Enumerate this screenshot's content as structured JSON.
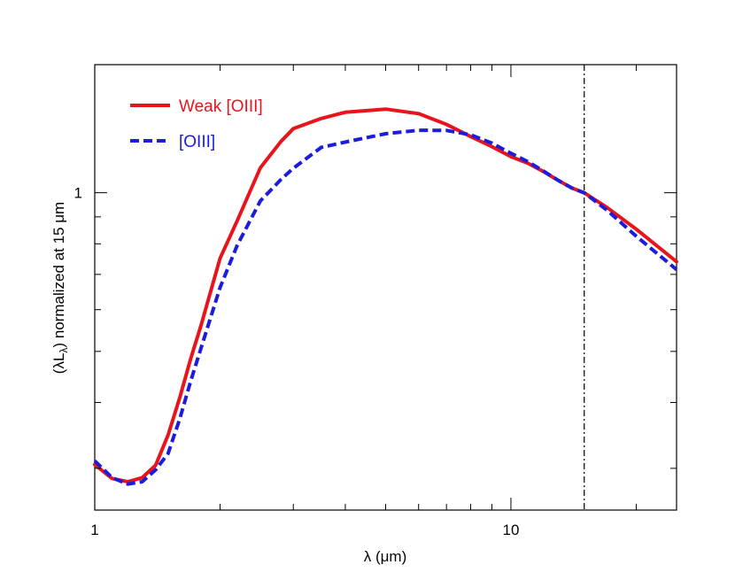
{
  "chart_data": {
    "type": "line",
    "title": "",
    "xlabel": "λ (μm)",
    "ylabel_main": "(λL",
    "ylabel_sub": "λ",
    "ylabel_rest": ") normalized at 15 μm",
    "x_scale": "log",
    "y_scale": "log",
    "xlim": [
      1,
      25
    ],
    "ylim": [
      0.25,
      1.75
    ],
    "x_tick_labels": [
      {
        "value": 1,
        "label": "1"
      },
      {
        "value": 10,
        "label": "10"
      }
    ],
    "y_tick_labels": [
      {
        "value": 1,
        "label": "1"
      }
    ],
    "reference_line": {
      "x": 15,
      "style": "dash-dot",
      "color": "#000000"
    },
    "legend_position": "top-left",
    "series": [
      {
        "name": "Weak [OIII]",
        "color": "#e8141c",
        "style": "solid",
        "x": [
          1.0,
          1.1,
          1.2,
          1.3,
          1.4,
          1.5,
          1.6,
          1.7,
          1.8,
          2.0,
          2.2,
          2.5,
          2.8,
          3.0,
          3.5,
          4.0,
          5.0,
          6.0,
          7.0,
          8.0,
          9.0,
          10.0,
          11.0,
          12.0,
          13.0,
          14.0,
          15.0,
          17.0,
          20.0,
          25.0
        ],
        "values": [
          0.305,
          0.287,
          0.283,
          0.288,
          0.304,
          0.347,
          0.408,
          0.484,
          0.56,
          0.751,
          0.885,
          1.115,
          1.251,
          1.323,
          1.383,
          1.421,
          1.441,
          1.413,
          1.348,
          1.278,
          1.223,
          1.171,
          1.137,
          1.096,
          1.055,
          1.021,
          1.0,
          0.938,
          0.853,
          0.74
        ]
      },
      {
        "name": "[OIII]",
        "color": "#1c1cdc",
        "style": "dashed",
        "x": [
          1.0,
          1.1,
          1.2,
          1.3,
          1.4,
          1.5,
          1.6,
          1.7,
          1.8,
          2.0,
          2.2,
          2.5,
          2.8,
          3.0,
          3.5,
          4.0,
          5.0,
          6.0,
          7.0,
          8.0,
          9.0,
          10.0,
          11.0,
          12.0,
          13.0,
          14.0,
          15.0,
          17.0,
          20.0,
          25.0
        ],
        "values": [
          0.31,
          0.288,
          0.28,
          0.283,
          0.298,
          0.32,
          0.372,
          0.439,
          0.507,
          0.661,
          0.795,
          0.965,
          1.059,
          1.113,
          1.219,
          1.248,
          1.294,
          1.314,
          1.313,
          1.288,
          1.242,
          1.188,
          1.145,
          1.098,
          1.055,
          1.021,
          1.0,
          0.927,
          0.827,
          0.715
        ]
      }
    ]
  }
}
